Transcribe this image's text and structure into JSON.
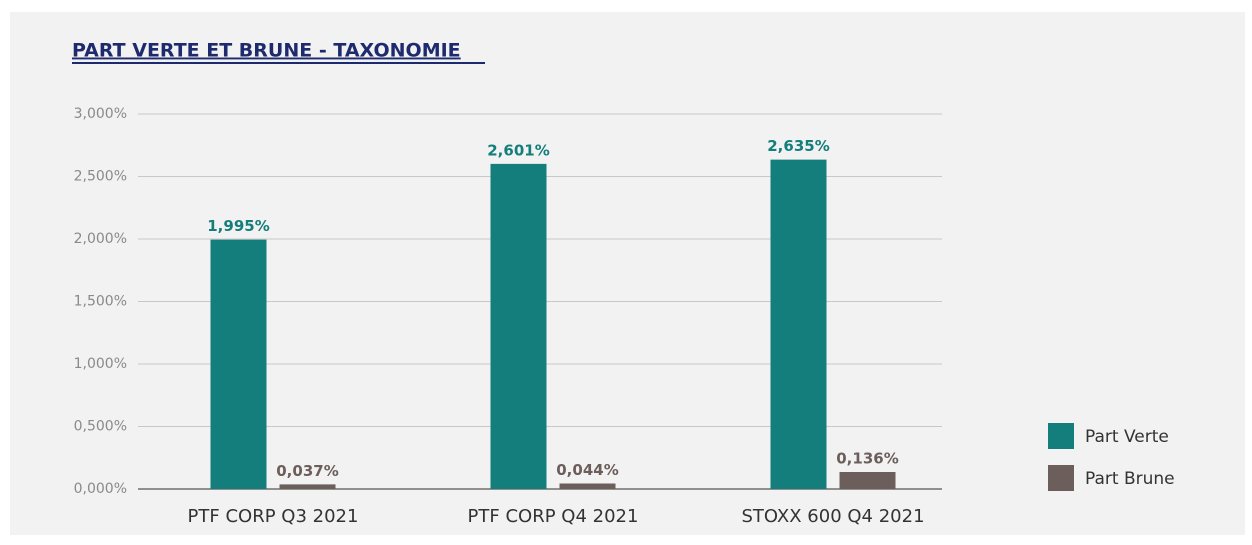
{
  "chart_data": {
    "type": "bar",
    "title": "PART VERTE ET BRUNE - TAXONOMIE",
    "categories": [
      "PTF CORP Q3 2021",
      "PTF CORP Q4 2021",
      "STOXX 600 Q4 2021"
    ],
    "series": [
      {
        "name": "Part Verte",
        "color": "#137e7b",
        "values": [
          1.995,
          2.601,
          2.635
        ],
        "value_labels": [
          "1,995%",
          "2,601%",
          "2,635%"
        ]
      },
      {
        "name": "Part Brune",
        "color": "#6b5e5b",
        "values": [
          0.037,
          0.044,
          0.136
        ],
        "value_labels": [
          "0,037%",
          "0,044%",
          "0,136%"
        ]
      }
    ],
    "ylim": [
      0,
      3
    ],
    "yticks": [
      {
        "value": 0,
        "label": "0,000%"
      },
      {
        "value": 0.5,
        "label": "0,500%"
      },
      {
        "value": 1,
        "label": "1,000%"
      },
      {
        "value": 1.5,
        "label": "1,500%"
      },
      {
        "value": 2,
        "label": "2,000%"
      },
      {
        "value": 2.5,
        "label": "2,500%"
      },
      {
        "value": 3,
        "label": "3,000%"
      }
    ],
    "grid": true,
    "legend": "right"
  }
}
